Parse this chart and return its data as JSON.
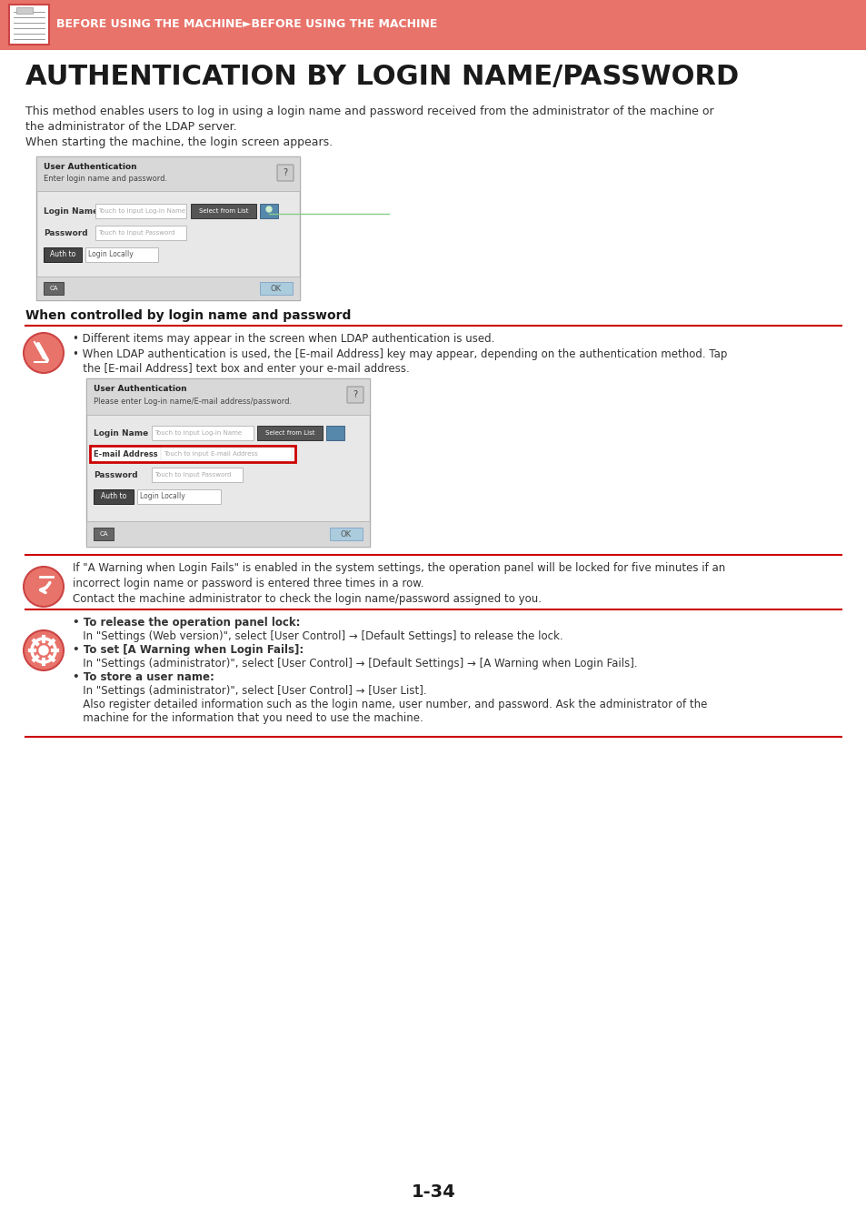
{
  "header_bg": "#E8736A",
  "header_text": "BEFORE USING THE MACHINE►BEFORE USING THE MACHINE",
  "header_text_color": "#FFFFFF",
  "page_bg": "#FFFFFF",
  "title": "AUTHENTICATION BY LOGIN NAME/PASSWORD",
  "title_color": "#1a1a1a",
  "body_text_color": "#333333",
  "red_line_color": "#CC0000",
  "intro_line1": "This method enables users to log in using a login name and password received from the administrator of the machine or",
  "intro_line2": "the administrator of the LDAP server.",
  "intro_line3": "When starting the machine, the login screen appears.",
  "section_heading": "When controlled by login name and password",
  "note1_bullet1": "• Different items may appear in the screen when LDAP authentication is used.",
  "note1_bullet2a": "• When LDAP authentication is used, the [E-mail Address] key may appear, depending on the authentication method. Tap",
  "note1_bullet2b": "   the [E-mail Address] text box and enter your e-mail address.",
  "note2_line1": "If \"A Warning when Login Fails\" is enabled in the system settings, the operation panel will be locked for five minutes if an",
  "note2_line2": "incorrect login name or password is entered three times in a row.",
  "note2_line3": "Contact the machine administrator to check the login name/password assigned to you.",
  "note3_b1a": "• To release the operation panel lock:",
  "note3_b1b": "   In \"Settings (Web version)\", select [User Control] → [Default Settings] to release the lock.",
  "note3_b2a": "• To set [A Warning when Login Fails]:",
  "note3_b2b": "   In \"Settings (administrator)\", select [User Control] → [Default Settings] → [A Warning when Login Fails].",
  "note3_b3a": "• To store a user name:",
  "note3_b3b": "   In \"Settings (administrator)\", select [User Control] → [User List].",
  "note3_b3c": "   Also register detailed information such as the login name, user number, and password. Ask the administrator of the",
  "note3_b3d": "   machine for the information that you need to use the machine.",
  "page_number": "1-34"
}
